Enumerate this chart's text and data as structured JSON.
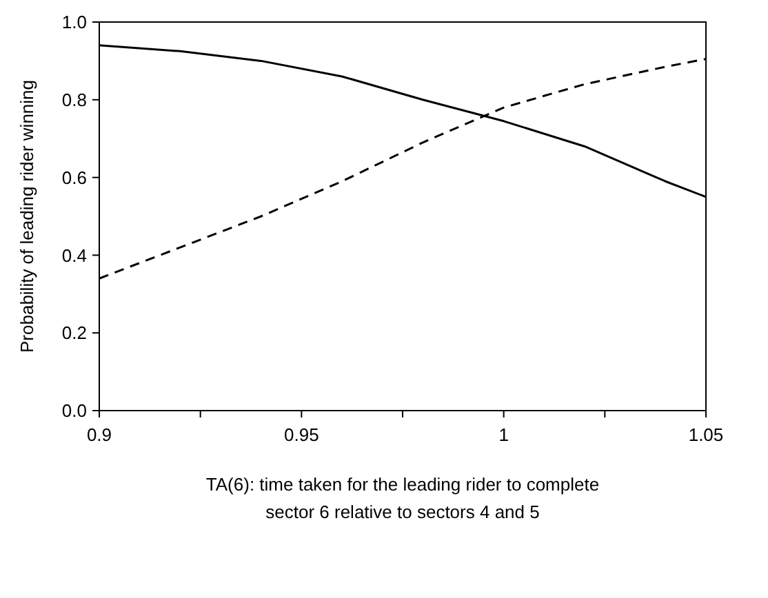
{
  "chart_data": {
    "type": "line",
    "xlabel": "TA(6): time taken for the leading rider to complete\nsector 6 relative to sectors 4 and 5",
    "ylabel": "Probability of leading rider winning",
    "xlim": [
      0.9,
      1.05
    ],
    "xticks": [
      0.9,
      {
        "value": 0.925,
        "label": null
      },
      0.95,
      {
        "value": 0.975,
        "label": null
      },
      1,
      {
        "value": 1.025,
        "label": null
      },
      1.05
    ],
    "ylim": [
      0,
      1
    ],
    "yticks": [
      {
        "value": 0,
        "label": "0.0"
      },
      {
        "value": 0.2,
        "label": "0.2"
      },
      {
        "value": 0.4,
        "label": "0.4"
      },
      {
        "value": 0.6,
        "label": "0.6"
      },
      {
        "value": 0.8,
        "label": "0.8"
      },
      {
        "value": 1,
        "label": "1.0"
      }
    ],
    "grid": false,
    "marker": "none",
    "series": [
      {
        "color": "#000000",
        "line_style": "solid",
        "x": [
          0.9,
          0.92,
          0.94,
          0.96,
          0.98,
          1.0,
          1.02,
          1.04,
          1.05
        ],
        "values": [
          0.94,
          0.925,
          0.9,
          0.86,
          0.8,
          0.745,
          0.68,
          0.59,
          0.55
        ]
      },
      {
        "color": "#000000",
        "line_style": "dashed",
        "x": [
          0.9,
          0.92,
          0.94,
          0.96,
          0.98,
          1.0,
          1.02,
          1.04,
          1.05
        ],
        "values": [
          0.34,
          0.42,
          0.5,
          0.59,
          0.69,
          0.78,
          0.84,
          0.885,
          0.905
        ]
      }
    ]
  }
}
